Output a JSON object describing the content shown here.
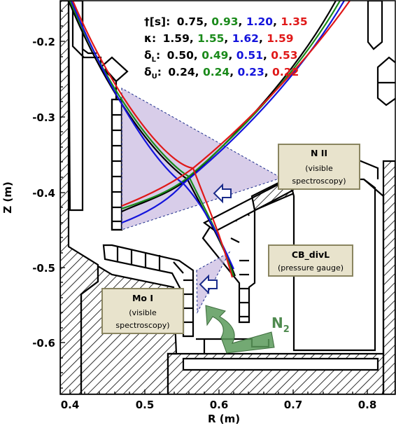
{
  "colors": {
    "black": "#000000",
    "green": "#1a8a1a",
    "blue": "#1414dc",
    "red": "#e01818",
    "view_fill": "#c8b8e0",
    "box_fill": "#e8e3cc",
    "box_border": "#8a8560",
    "n2_arrow": "#5a9a5a"
  },
  "axes": {
    "xlabel": "R (m)",
    "ylabel": "Z (m)",
    "xticks": [
      "0.4",
      "0.5",
      "0.6",
      "0.7",
      "0.8"
    ],
    "yticks": [
      "-0.2",
      "-0.3",
      "-0.4",
      "-0.5",
      "-0.6"
    ]
  },
  "legend": {
    "rows": [
      {
        "label": "†[s]:",
        "values": [
          "0.75",
          "0.93",
          "1.20",
          "1.35"
        ]
      },
      {
        "label": "κ:",
        "values": [
          "1.59",
          "1.55",
          "1.62",
          "1.59"
        ]
      },
      {
        "label": "δ",
        "sub": "L",
        "values": [
          "0.50",
          "0.49",
          "0.51",
          "0.53"
        ]
      },
      {
        "label": "δ",
        "sub": "U",
        "values": [
          "0.24",
          "0.24",
          "0.23",
          "0.22"
        ]
      }
    ]
  },
  "boxes": {
    "n2": {
      "title": "N II",
      "sub1": "(visible",
      "sub2": "spectroscopy)"
    },
    "cb": {
      "title": "CB_divL",
      "sub1": "(pressure gauge)"
    },
    "mo": {
      "title": "Mo I",
      "sub1": "(visible",
      "sub2": "spectroscopy)"
    }
  },
  "gas": {
    "label": "N",
    "sub": "2"
  }
}
